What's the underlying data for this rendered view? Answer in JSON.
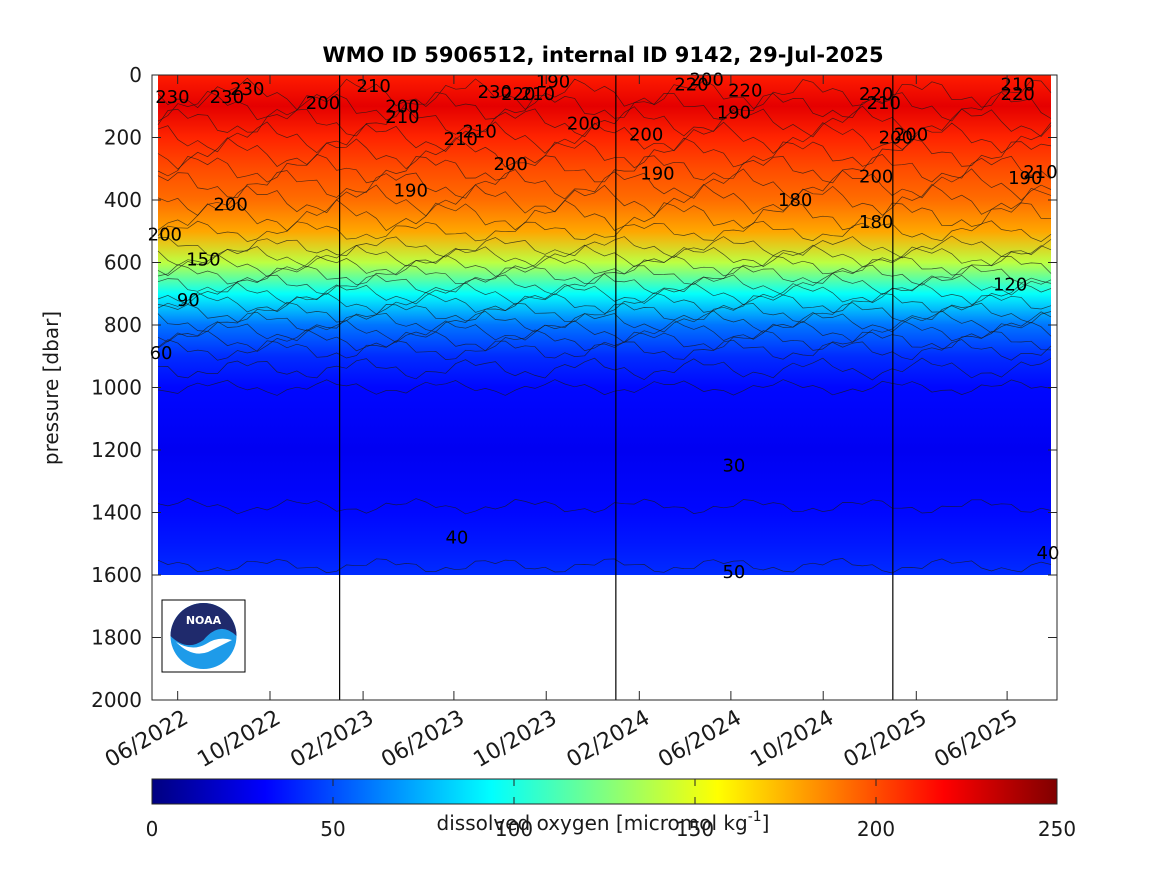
{
  "chart_data": {
    "type": "heatmap",
    "title": "WMO ID 5906512, internal ID 9142, 29-Jul-2025",
    "ylabel": "pressure [dbar]",
    "xlabel": "",
    "y_ticks": [
      "0",
      "200",
      "400",
      "600",
      "800",
      "1000",
      "1200",
      "1400",
      "1600",
      "1800",
      "2000"
    ],
    "ylim": [
      0,
      2000
    ],
    "y_reversed": true,
    "x_ticks": [
      "06/2022",
      "10/2022",
      "02/2023",
      "06/2023",
      "10/2023",
      "02/2024",
      "06/2024",
      "10/2024",
      "02/2025",
      "06/2025"
    ],
    "year_boundaries": [
      "2023-01-01",
      "2024-01-01",
      "2025-01-01"
    ],
    "data_pressure_max": 1600,
    "colorbar": {
      "label": "dissolved oxygen [micromol kg",
      "label_superscript": "-1",
      "label_suffix": "]",
      "ticks": [
        "0",
        "50",
        "100",
        "150",
        "200",
        "250"
      ],
      "range": [
        0,
        250
      ],
      "colormap": "jet"
    },
    "profile_oxygen": [
      {
        "pressure": 0,
        "value": 212
      },
      {
        "pressure": 100,
        "value": 225
      },
      {
        "pressure": 200,
        "value": 210
      },
      {
        "pressure": 300,
        "value": 200
      },
      {
        "pressure": 400,
        "value": 192
      },
      {
        "pressure": 500,
        "value": 178
      },
      {
        "pressure": 600,
        "value": 140
      },
      {
        "pressure": 700,
        "value": 95
      },
      {
        "pressure": 800,
        "value": 60
      },
      {
        "pressure": 900,
        "value": 42
      },
      {
        "pressure": 1000,
        "value": 33
      },
      {
        "pressure": 1200,
        "value": 28
      },
      {
        "pressure": 1400,
        "value": 33
      },
      {
        "pressure": 1500,
        "value": 37
      },
      {
        "pressure": 1600,
        "value": 42
      }
    ],
    "contour_labels": [
      {
        "text": "230",
        "date": "2022-05-25",
        "pressure": 70
      },
      {
        "text": "230",
        "date": "2022-08-05",
        "pressure": 70
      },
      {
        "text": "230",
        "date": "2022-09-01",
        "pressure": 45
      },
      {
        "text": "200",
        "date": "2022-12-10",
        "pressure": 90
      },
      {
        "text": "210",
        "date": "2023-02-15",
        "pressure": 35
      },
      {
        "text": "200",
        "date": "2023-03-25",
        "pressure": 100
      },
      {
        "text": "210",
        "date": "2023-03-25",
        "pressure": 135
      },
      {
        "text": "210",
        "date": "2023-06-10",
        "pressure": 205
      },
      {
        "text": "210",
        "date": "2023-07-05",
        "pressure": 180
      },
      {
        "text": "200",
        "date": "2023-08-15",
        "pressure": 285
      },
      {
        "text": "190",
        "date": "2023-04-05",
        "pressure": 370
      },
      {
        "text": "230",
        "date": "2023-07-25",
        "pressure": 55
      },
      {
        "text": "220",
        "date": "2023-08-25",
        "pressure": 60
      },
      {
        "text": "210",
        "date": "2023-09-20",
        "pressure": 60
      },
      {
        "text": "190",
        "date": "2023-10-10",
        "pressure": 20
      },
      {
        "text": "200",
        "date": "2023-11-20",
        "pressure": 155
      },
      {
        "text": "200",
        "date": "2024-02-10",
        "pressure": 190
      },
      {
        "text": "190",
        "date": "2024-02-25",
        "pressure": 315
      },
      {
        "text": "220",
        "date": "2024-04-10",
        "pressure": 30
      },
      {
        "text": "200",
        "date": "2024-04-30",
        "pressure": 15
      },
      {
        "text": "220",
        "date": "2024-06-20",
        "pressure": 50
      },
      {
        "text": "190",
        "date": "2024-06-05",
        "pressure": 120
      },
      {
        "text": "180",
        "date": "2024-08-25",
        "pressure": 400
      },
      {
        "text": "220",
        "date": "2024-12-10",
        "pressure": 60
      },
      {
        "text": "210",
        "date": "2024-12-20",
        "pressure": 90
      },
      {
        "text": "200",
        "date": "2025-01-05",
        "pressure": 200
      },
      {
        "text": "200",
        "date": "2025-01-25",
        "pressure": 190
      },
      {
        "text": "200",
        "date": "2024-12-10",
        "pressure": 325
      },
      {
        "text": "180",
        "date": "2024-12-10",
        "pressure": 470
      },
      {
        "text": "210",
        "date": "2025-06-15",
        "pressure": 30
      },
      {
        "text": "220",
        "date": "2025-06-15",
        "pressure": 60
      },
      {
        "text": "210",
        "date": "2025-07-15",
        "pressure": 310
      },
      {
        "text": "190",
        "date": "2025-06-25",
        "pressure": 330
      },
      {
        "text": "120",
        "date": "2025-06-05",
        "pressure": 670
      },
      {
        "text": "200",
        "date": "2022-05-15",
        "pressure": 510
      },
      {
        "text": "200",
        "date": "2022-08-10",
        "pressure": 415
      },
      {
        "text": "150",
        "date": "2022-07-05",
        "pressure": 590
      },
      {
        "text": "90",
        "date": "2022-06-15",
        "pressure": 720
      },
      {
        "text": "60",
        "date": "2022-05-10",
        "pressure": 890
      },
      {
        "text": "30",
        "date": "2024-06-05",
        "pressure": 1250
      },
      {
        "text": "40",
        "date": "2023-06-05",
        "pressure": 1480
      },
      {
        "text": "50",
        "date": "2024-06-05",
        "pressure": 1590
      },
      {
        "text": "40",
        "date": "2025-07-25",
        "pressure": 1530
      }
    ]
  },
  "logo": {
    "text": "NOAA"
  }
}
